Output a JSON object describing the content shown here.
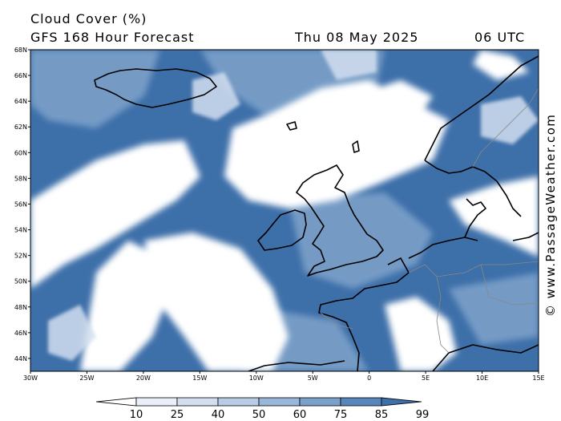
{
  "title": {
    "variable": "Cloud Cover (%)",
    "model": "GFS 168 Hour Forecast",
    "date": "Thu 08 May 2025",
    "time": "06 UTC"
  },
  "credit": "© www.PassageWeather.com",
  "map": {
    "lon_range": [
      -30,
      15
    ],
    "lat_range": [
      43,
      68
    ],
    "lat_ticks": [
      "68N",
      "66N",
      "64N",
      "62N",
      "60N",
      "58N",
      "56N",
      "54N",
      "52N",
      "50N",
      "48N",
      "46N",
      "44N"
    ],
    "lon_ticks": [
      "30W",
      "25W",
      "20W",
      "15W",
      "10W",
      "5W",
      "0",
      "5E",
      "10E",
      "15E"
    ]
  },
  "colorbar": {
    "levels": [
      "10",
      "25",
      "40",
      "50",
      "60",
      "75",
      "85",
      "99"
    ],
    "colors": [
      "#ffffff",
      "#ebf0f8",
      "#d3dff0",
      "#b8cce4",
      "#9ab6d8",
      "#7ba0c9",
      "#5886ba",
      "#3d6fa9"
    ]
  }
}
